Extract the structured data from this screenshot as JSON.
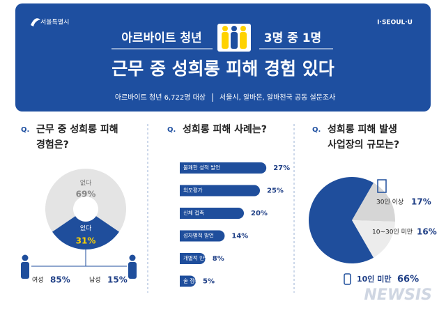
{
  "header": {
    "logo_left": "서울특별시",
    "logo_right": "I·SEOUL·U",
    "headline_left": "아르바이트 청년",
    "headline_right": "3명 중 1명",
    "title": "근무 중 성희롱 피해 경험 있다",
    "subtitle": "아르바이트 청년 6,722명 대상",
    "sources": "서울시, 알바몬, 알바천국 공동 설문조사"
  },
  "watermark": "NEWSIS",
  "chart_data": [
    {
      "type": "donut",
      "marker": "Q.",
      "title": [
        "근무 중 성희롱 피해",
        "경험은?"
      ],
      "categories": [
        "없다",
        "있다"
      ],
      "values": [
        69,
        31
      ],
      "value_labels": [
        "69%",
        "31%"
      ],
      "colors": [
        "#e4e4e4",
        "#1f4e9c"
      ]
    },
    {
      "type": "gender",
      "categories": [
        "여성",
        "남성"
      ],
      "values": [
        85,
        15
      ],
      "value_labels": [
        "85%",
        "15%"
      ],
      "color": "#1f4e9c"
    },
    {
      "type": "bar",
      "marker": "Q.",
      "title": [
        "성희롱 피해 사례는?"
      ],
      "categories": [
        "불쾌한 성적 발언",
        "외모평가",
        "신체 접촉",
        "성차별적 발언",
        "개별적 만남 요구",
        "술 접대 강요"
      ],
      "values": [
        27,
        25,
        20,
        14,
        8,
        5
      ],
      "value_labels": [
        "27%",
        "25%",
        "20%",
        "14%",
        "8%",
        "5%"
      ],
      "color": "#1f4e9c"
    },
    {
      "type": "pie",
      "marker": "Q.",
      "title": [
        "성희롱 피해 발생",
        "사업장의 규모는?"
      ],
      "categories": [
        "30인 이상",
        "10~30인 미만",
        "10인 미만"
      ],
      "values": [
        17,
        16,
        66
      ],
      "value_labels": [
        "17%",
        "16%",
        "66%"
      ],
      "colors": [
        "#d6d6d6",
        "#ececec",
        "#1f4e9c"
      ]
    }
  ]
}
